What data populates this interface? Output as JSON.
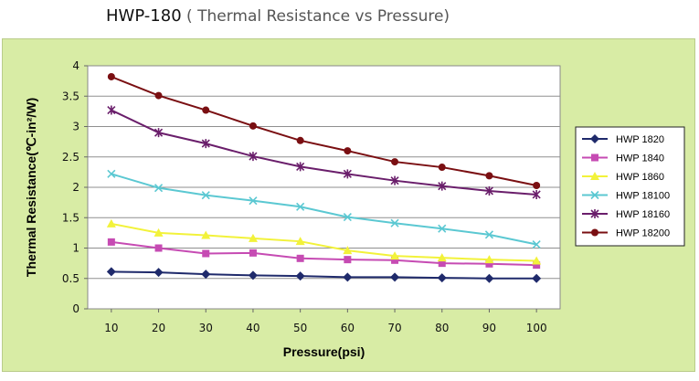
{
  "page": {
    "title_main": "HWP-180",
    "title_sub": " ( Thermal Resistance vs Pressure)"
  },
  "chart_data": {
    "type": "line",
    "title": "HWP-180 ( Thermal Resistance vs Pressure)",
    "xlabel": "Pressure(psi)",
    "ylabel": "Thermal Resistance(℃-in²/W)",
    "x": [
      10,
      20,
      30,
      40,
      50,
      60,
      70,
      80,
      90,
      100
    ],
    "x_ticks": [
      "10",
      "20",
      "30",
      "40",
      "50",
      "60",
      "70",
      "80",
      "90",
      "100"
    ],
    "y_ticks": [
      "0",
      "0.5",
      "1",
      "1.5",
      "2",
      "2.5",
      "3",
      "3.5",
      "4"
    ],
    "ylim": [
      0,
      4
    ],
    "grid": "horizontal",
    "legend_position": "right",
    "background_color": "#d8eca5",
    "plot_color": "#ffffff",
    "series": [
      {
        "name": "HWP 1820",
        "color": "#1f2a6b",
        "marker": "diamond",
        "values": [
          0.61,
          0.6,
          0.57,
          0.55,
          0.54,
          0.52,
          0.52,
          0.51,
          0.5,
          0.5
        ]
      },
      {
        "name": "HWP 1840",
        "color": "#c64bb3",
        "marker": "square",
        "values": [
          1.1,
          1.0,
          0.91,
          0.92,
          0.83,
          0.81,
          0.8,
          0.75,
          0.74,
          0.72
        ]
      },
      {
        "name": "HWP 1860",
        "color": "#f2f23a",
        "marker": "triangle",
        "values": [
          1.4,
          1.25,
          1.21,
          1.16,
          1.11,
          0.96,
          0.87,
          0.84,
          0.81,
          0.79
        ]
      },
      {
        "name": "HWP 18100",
        "color": "#5bc8d2",
        "marker": "x",
        "values": [
          2.22,
          1.99,
          1.87,
          1.78,
          1.68,
          1.51,
          1.41,
          1.32,
          1.22,
          1.06
        ]
      },
      {
        "name": "HWP 18160",
        "color": "#6a1e6b",
        "marker": "star",
        "values": [
          3.27,
          2.9,
          2.72,
          2.51,
          2.34,
          2.22,
          2.11,
          2.02,
          1.94,
          1.88
        ]
      },
      {
        "name": "HWP 18200",
        "color": "#7a0f12",
        "marker": "circle",
        "values": [
          3.82,
          3.51,
          3.27,
          3.01,
          2.77,
          2.6,
          2.42,
          2.33,
          2.19,
          2.03
        ]
      }
    ]
  }
}
